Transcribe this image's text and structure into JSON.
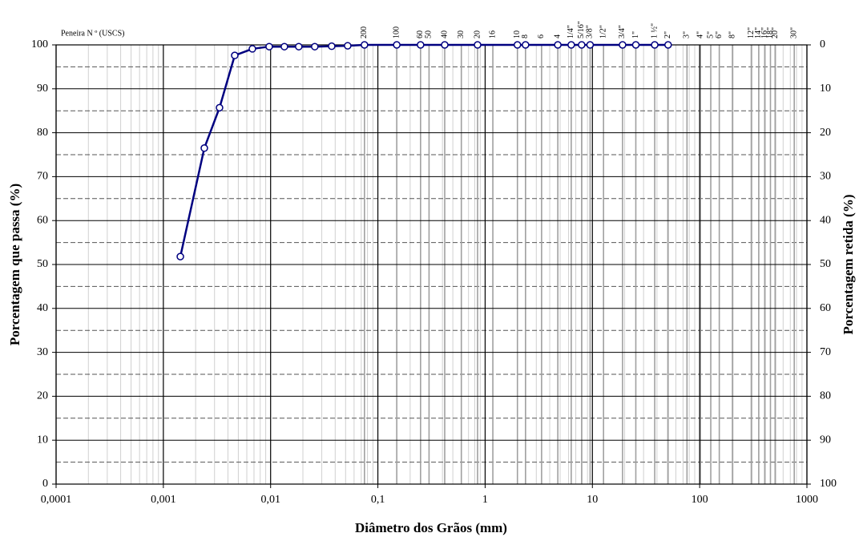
{
  "chart_data": {
    "type": "line",
    "title": "Peneira N º  (USCS)",
    "x_label": "Diâmetro dos Grãos (mm)",
    "y_label": "Porcentagem que passa    (%)",
    "y2_label": "Porcentagem retida  (%)",
    "log_x": true,
    "grid": true,
    "xlim": [
      0.0001,
      1000
    ],
    "xticks": [
      {
        "value": 0.0001,
        "label": "0,0001"
      },
      {
        "value": 0.001,
        "label": "0,001"
      },
      {
        "value": 0.01,
        "label": "0,01"
      },
      {
        "value": 0.1,
        "label": "0,1"
      },
      1,
      10,
      100,
      1000
    ],
    "ylim": [
      0,
      100
    ],
    "yticks": [
      0,
      10,
      20,
      30,
      40,
      50,
      60,
      70,
      80,
      90,
      100
    ],
    "y2lim": [
      100,
      0
    ],
    "y2ticks": [
      100,
      90,
      80,
      70,
      60,
      50,
      40,
      30,
      20,
      10,
      0
    ],
    "sieves": [
      {
        "label": "200",
        "size": 0.075
      },
      {
        "label": "100",
        "size": 0.15
      },
      {
        "label": "60",
        "size": 0.25
      },
      {
        "label": "50",
        "size": 0.3
      },
      {
        "label": "40",
        "size": 0.42
      },
      {
        "label": "30",
        "size": 0.6
      },
      {
        "label": "20",
        "size": 0.85
      },
      {
        "label": "16",
        "size": 1.18
      },
      {
        "label": "10",
        "size": 2.0
      },
      {
        "label": "8",
        "size": 2.38
      },
      {
        "label": "6",
        "size": 3.36
      },
      {
        "label": "4",
        "size": 4.76
      },
      {
        "label": "1/4\"",
        "size": 6.35
      },
      {
        "label": "5/16\"",
        "size": 7.94
      },
      {
        "label": "3/8\"",
        "size": 9.52
      },
      {
        "label": "1/2\"",
        "size": 12.7
      },
      {
        "label": "3/4\"",
        "size": 19.1
      },
      {
        "label": "1\"",
        "size": 25.4
      },
      {
        "label": "1 ½\"",
        "size": 38.1
      },
      {
        "label": "2\"",
        "size": 50.8
      },
      {
        "label": "3\"",
        "size": 76.2
      },
      {
        "label": "4\"",
        "size": 101.6
      },
      {
        "label": "5\"",
        "size": 127
      },
      {
        "label": "6\"",
        "size": 152.4
      },
      {
        "label": "8\"",
        "size": 203.2
      },
      {
        "label": "12\"",
        "size": 304.8
      },
      {
        "label": "14\"",
        "size": 355.6
      },
      {
        "label": "16\"",
        "size": 406.4
      },
      {
        "label": "18\"",
        "size": 457.2
      },
      {
        "label": "20\"",
        "size": 508
      },
      {
        "label": "30\"",
        "size": 762
      }
    ],
    "x": [
      0.00144,
      0.00241,
      0.00334,
      0.00463,
      0.00676,
      0.0097,
      0.01344,
      0.0183,
      0.0258,
      0.0371,
      0.0523,
      0.075,
      0.15,
      0.25,
      0.42,
      0.85,
      2.0,
      2.38,
      4.76,
      6.35,
      7.94,
      9.52,
      19.1,
      25.4,
      38.1,
      50.8
    ],
    "series": [
      {
        "color": "#000080",
        "values": [
          51.8,
          76.5,
          85.7,
          97.6,
          99.1,
          99.6,
          99.6,
          99.6,
          99.6,
          99.7,
          99.8,
          100,
          100,
          100,
          100,
          100,
          100,
          100,
          100,
          100,
          100,
          100,
          100,
          100,
          100,
          100
        ]
      }
    ]
  }
}
